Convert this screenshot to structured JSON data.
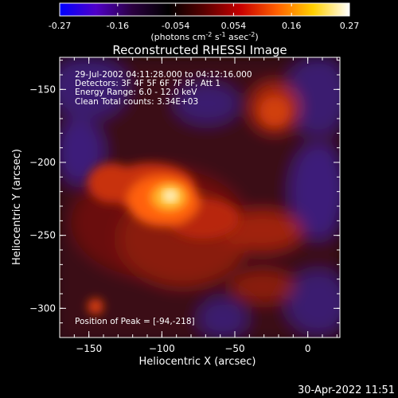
{
  "colorbar": {
    "ticks": [
      "-0.27",
      "-0.16",
      "-0.054",
      "0.054",
      "0.16",
      "0.27"
    ],
    "units_text": "(photons cm",
    "units_exp1": "-2",
    "units_mid": " s",
    "units_exp2": "-1",
    "units_mid2": " asec",
    "units_exp3": "-2",
    "units_end": ")",
    "stops": [
      "#0000ff",
      "#5000c8",
      "#2a0040",
      "#000000",
      "#5a0000",
      "#c80000",
      "#ff6000",
      "#ffd000",
      "#ffffff"
    ]
  },
  "plot": {
    "title": "Reconstructed RHESSI Image",
    "xlabel": "Heliocentric X (arcsec)",
    "ylabel": "Heliocentric Y (arcsec)",
    "xticks": [
      "-150",
      "-100",
      "-50",
      "0"
    ],
    "yticks": [
      "-150",
      "-200",
      "-250",
      "-300"
    ],
    "xlim": [
      -170,
      22
    ],
    "ylim": [
      -320,
      -128
    ],
    "info": [
      "29-Jul-2002 04:11:28.000 to 04:12:16.000",
      "Detectors: 3F 4F 5F 6F 7F 8F, Att 1",
      "Energy Range: 6.0 - 12.0 keV",
      "Clean     Total counts: 3.34E+03"
    ],
    "peak_label": "Position of Peak = [-94,-218]",
    "peak_position": [
      -94,
      -218
    ]
  },
  "timestamp": "30-Apr-2022 11:51"
}
